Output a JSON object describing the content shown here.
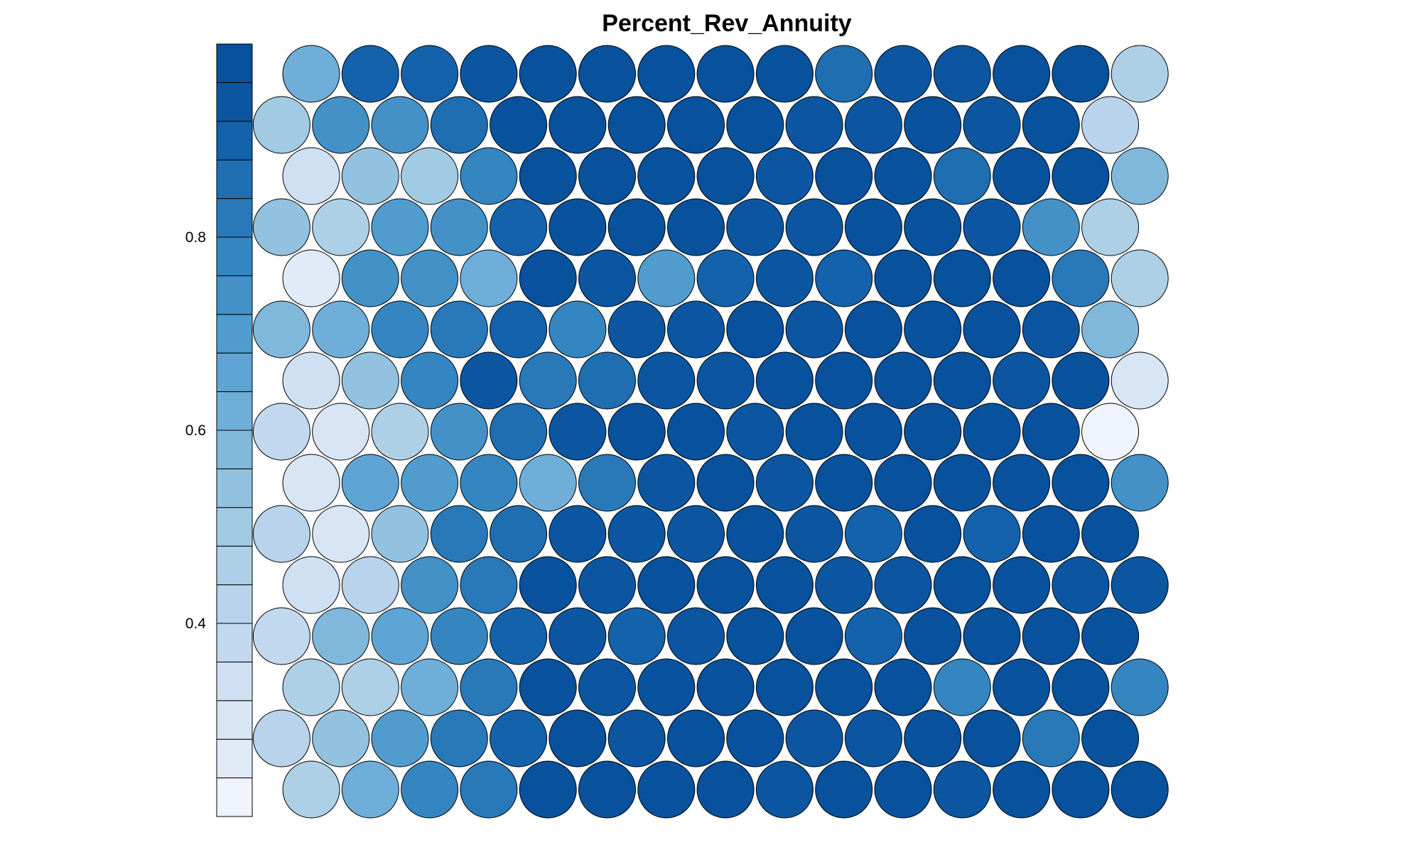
{
  "chart_data": {
    "type": "heatmap",
    "title": "Percent_Rev_Annuity",
    "grid_rows": 15,
    "grid_cols": 15,
    "layout": "hexagonal",
    "color_range": [
      0.2,
      1.0
    ],
    "colorbar_ticks": [
      0.4,
      0.6,
      0.8
    ],
    "colorbar_colors": [
      "#eef3fc",
      "#e1eaf7",
      "#d8e5f4",
      "#cfe0f2",
      "#c2d8ee",
      "#b8d3eb",
      "#add0e6",
      "#a1cbe3",
      "#92c2df",
      "#80b8db",
      "#6eaed9",
      "#5ea4d4",
      "#509ccd",
      "#4391c6",
      "#3585c0",
      "#2979b9",
      "#1e6eb1",
      "#1462ab",
      "#0c56a1",
      "#08519c"
    ],
    "values": [
      [
        0.62,
        0.91,
        0.9,
        0.95,
        0.99,
        0.99,
        0.99,
        0.98,
        0.98,
        0.88,
        0.95,
        0.94,
        0.98,
        0.98,
        0.46
      ],
      [
        0.5,
        0.72,
        0.75,
        0.87,
        0.99,
        0.99,
        0.98,
        0.98,
        0.98,
        0.94,
        0.93,
        0.98,
        0.93,
        0.98,
        0.4
      ],
      [
        0.33,
        0.55,
        0.5,
        0.76,
        0.99,
        0.99,
        0.98,
        0.99,
        0.93,
        0.98,
        0.98,
        0.88,
        0.99,
        0.99,
        0.6
      ],
      [
        0.53,
        0.47,
        0.7,
        0.72,
        0.89,
        0.99,
        0.99,
        0.99,
        0.95,
        0.93,
        0.99,
        0.99,
        0.93,
        0.72,
        0.46
      ],
      [
        0.25,
        0.73,
        0.72,
        0.62,
        0.99,
        0.95,
        0.7,
        0.89,
        0.94,
        0.91,
        0.98,
        0.99,
        0.98,
        0.82,
        0.46
      ],
      [
        0.58,
        0.62,
        0.76,
        0.84,
        0.89,
        0.78,
        0.94,
        0.94,
        0.98,
        0.94,
        0.99,
        0.99,
        0.99,
        0.94,
        0.6
      ],
      [
        0.35,
        0.55,
        0.78,
        0.95,
        0.82,
        0.87,
        0.93,
        0.93,
        0.99,
        0.99,
        0.99,
        0.99,
        0.94,
        0.98,
        0.3
      ],
      [
        0.37,
        0.28,
        0.48,
        0.73,
        0.88,
        0.95,
        0.99,
        0.99,
        0.95,
        0.99,
        0.99,
        0.99,
        0.99,
        0.99,
        0.21
      ],
      [
        0.28,
        0.66,
        0.68,
        0.76,
        0.62,
        0.82,
        0.94,
        0.99,
        0.95,
        0.99,
        0.99,
        0.98,
        0.99,
        0.99,
        0.72
      ],
      [
        0.43,
        0.3,
        0.55,
        0.82,
        0.88,
        0.93,
        0.93,
        0.94,
        0.99,
        0.95,
        0.91,
        0.99,
        0.91,
        0.99,
        0.99
      ],
      [
        0.34,
        0.43,
        0.75,
        0.8,
        0.99,
        0.94,
        0.99,
        0.99,
        0.99,
        0.95,
        0.93,
        0.99,
        0.99,
        0.94,
        0.95
      ],
      [
        0.37,
        0.6,
        0.67,
        0.78,
        0.89,
        0.93,
        0.89,
        0.94,
        0.99,
        0.99,
        0.9,
        0.99,
        0.99,
        0.99,
        0.99
      ],
      [
        0.44,
        0.48,
        0.64,
        0.82,
        0.99,
        0.94,
        0.99,
        0.99,
        0.99,
        0.98,
        0.99,
        0.78,
        0.99,
        0.99,
        0.78
      ],
      [
        0.43,
        0.55,
        0.7,
        0.82,
        0.89,
        0.99,
        0.93,
        0.99,
        0.99,
        0.94,
        0.93,
        0.99,
        0.99,
        0.84,
        0.99
      ],
      [
        0.46,
        0.64,
        0.78,
        0.83,
        0.99,
        0.99,
        0.99,
        0.99,
        0.94,
        0.99,
        0.99,
        0.94,
        0.99,
        0.99,
        0.99
      ]
    ]
  }
}
